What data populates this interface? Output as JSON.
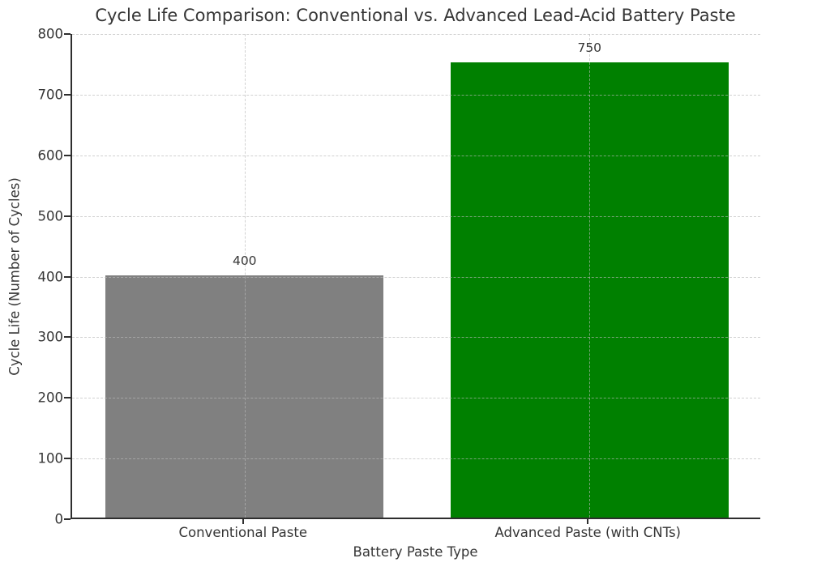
{
  "chart_data": {
    "type": "bar",
    "title": "Cycle Life Comparison: Conventional vs. Advanced Lead-Acid Battery Paste",
    "xlabel": "Battery Paste Type",
    "ylabel": "Cycle Life (Number of Cycles)",
    "categories": [
      "Conventional Paste",
      "Advanced Paste (with CNTs)"
    ],
    "values": [
      400,
      750
    ],
    "value_labels": [
      "400",
      "750"
    ],
    "bar_colors": [
      "#808080",
      "#008000"
    ],
    "ylim": [
      0,
      800
    ],
    "yticks": [
      0,
      100,
      200,
      300,
      400,
      500,
      600,
      700,
      800
    ],
    "grid": "dashed, both axes, drawn over bars",
    "legend": "none",
    "background": "#ffffff",
    "text_color": "#363636",
    "grid_color": "#b9b9b9"
  }
}
